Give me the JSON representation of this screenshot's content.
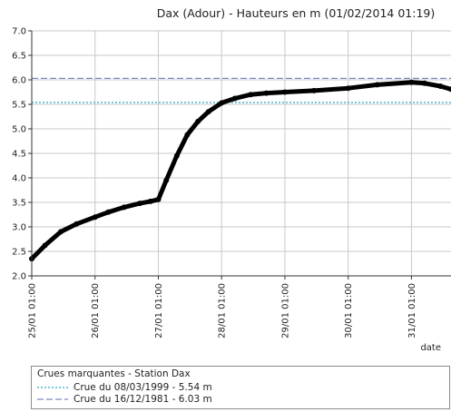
{
  "chart_data": {
    "type": "line",
    "title": "Dax (Adour) - Hauteurs en m (01/02/2014 01:19)",
    "xlabel": "date",
    "ylabel": "",
    "ylim": [
      2.0,
      7.0
    ],
    "yticks": [
      "2.0",
      "2.5",
      "3.0",
      "3.5",
      "4.0",
      "4.5",
      "5.0",
      "5.5",
      "6.0",
      "6.5",
      "7.0"
    ],
    "xlim": [
      "25/01 01:00",
      "31/01 16:00"
    ],
    "xticks": [
      "25/01 01:00",
      "26/01 01:00",
      "27/01 01:00",
      "28/01 01:00",
      "29/01 01:00",
      "30/01 01:00",
      "31/01 01:00"
    ],
    "grid": true,
    "series": [
      {
        "color": "#000000",
        "x": [
          "25/01 01:00",
          "25/01 06:00",
          "25/01 12:00",
          "25/01 18:00",
          "26/01 01:00",
          "26/01 06:00",
          "26/01 12:00",
          "26/01 18:00",
          "26/01 22:00",
          "27/01 01:00",
          "27/01 04:00",
          "27/01 08:00",
          "27/01 12:00",
          "27/01 16:00",
          "27/01 20:00",
          "28/01 01:00",
          "28/01 06:00",
          "28/01 12:00",
          "28/01 18:00",
          "29/01 01:00",
          "29/01 12:00",
          "30/01 01:00",
          "30/01 12:00",
          "31/01 01:00",
          "31/01 06:00",
          "31/01 12:00",
          "31/01 16:00"
        ],
        "values": [
          2.35,
          2.62,
          2.9,
          3.06,
          3.2,
          3.3,
          3.4,
          3.48,
          3.52,
          3.56,
          3.95,
          4.45,
          4.88,
          5.15,
          5.35,
          5.53,
          5.62,
          5.7,
          5.73,
          5.75,
          5.78,
          5.83,
          5.9,
          5.95,
          5.93,
          5.87,
          5.81
        ]
      }
    ],
    "reference_lines": [
      {
        "label": "Crue du 08/03/1999 - 5.54 m",
        "value": 5.54,
        "color": "#2aa7c9",
        "style": "dotted"
      },
      {
        "label": "Crue du 16/12/1981 - 6.03 m",
        "value": 6.03,
        "color": "#7e86c4",
        "style": "dashed"
      }
    ]
  },
  "legend": {
    "title": "Crues marquantes - Station Dax",
    "items": [
      "Crue du 08/03/1999 - 5.54 m",
      "Crue du 16/12/1981 - 6.03 m"
    ]
  }
}
